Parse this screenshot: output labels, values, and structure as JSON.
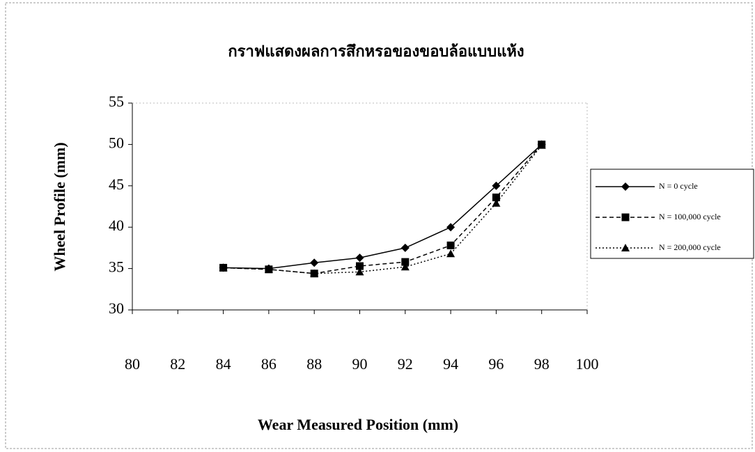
{
  "chart_data": {
    "type": "line",
    "title": "กราฟแสดงผลการสึกหรอของขอบล้อแบบแห้ง",
    "x_label": "Wear Measured Position (mm)",
    "y_label": "Wheel Profile (mm)",
    "x": [
      84,
      86,
      88,
      90,
      92,
      94,
      96,
      98
    ],
    "series": [
      {
        "name": "N = 0 cycle",
        "color": "#000000",
        "marker": "diamond",
        "dash": "solid",
        "values": [
          35.1,
          35.0,
          35.7,
          36.3,
          37.5,
          40.0,
          45.0,
          50.0
        ]
      },
      {
        "name": "N = 100,000 cycle",
        "color": "#000000",
        "marker": "square",
        "dash": "dashed",
        "values": [
          35.1,
          34.9,
          34.4,
          35.3,
          35.8,
          37.8,
          43.6,
          50.0
        ]
      },
      {
        "name": "N = 200,000 cycle",
        "color": "#000000",
        "marker": "triangle",
        "dash": "dotted",
        "values": [
          35.1,
          34.9,
          34.4,
          34.6,
          35.2,
          36.8,
          42.9,
          49.9
        ]
      }
    ],
    "xlim": [
      80,
      100
    ],
    "xticks": [
      80,
      82,
      84,
      86,
      88,
      90,
      92,
      94,
      96,
      98,
      100
    ],
    "ylim": [
      30,
      55
    ],
    "yticks": [
      30,
      35,
      40,
      45,
      50,
      55
    ],
    "legend": "right"
  }
}
